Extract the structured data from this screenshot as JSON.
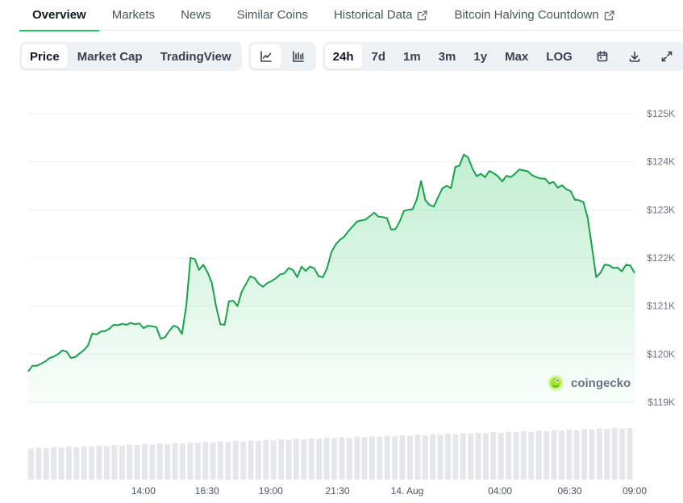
{
  "tabs": [
    {
      "label": "Overview",
      "active": true,
      "external": false
    },
    {
      "label": "Markets",
      "active": false,
      "external": false
    },
    {
      "label": "News",
      "active": false,
      "external": false
    },
    {
      "label": "Similar Coins",
      "active": false,
      "external": false
    },
    {
      "label": "Historical Data",
      "active": false,
      "external": true
    },
    {
      "label": "Bitcoin Halving Countdown",
      "active": false,
      "external": true
    }
  ],
  "toolbar": {
    "metric_tabs": [
      "Price",
      "Market Cap",
      "TradingView"
    ],
    "metric_active": "Price",
    "chart_style_icons": [
      "line-chart-icon",
      "candlestick-chart-icon"
    ],
    "chart_style_active": "line-chart-icon",
    "ranges": [
      "24h",
      "7d",
      "1m",
      "3m",
      "1y",
      "Max",
      "LOG"
    ],
    "range_active": "24h",
    "action_icons": [
      "calendar-icon",
      "download-icon",
      "expand-icon"
    ]
  },
  "watermark": "coingecko",
  "colors": {
    "accent": "#16a34a",
    "tab_underline": "#22c55e",
    "volume": "#e5e7eb"
  },
  "chart_data": {
    "type": "area",
    "title": "",
    "xlabel": "",
    "ylabel": "",
    "ylim": [
      118900,
      125200
    ],
    "yticks": [
      119000,
      120000,
      121000,
      122000,
      123000,
      124000,
      125000
    ],
    "ytick_labels": [
      "$119K",
      "$120K",
      "$121K",
      "$122K",
      "$123K",
      "$124K",
      "$125K"
    ],
    "xticks": [
      "14:00",
      "16:30",
      "19:00",
      "21:30",
      "14. Aug",
      "04:00",
      "06:30",
      "09:00"
    ],
    "xtick_positions": [
      0.19,
      0.295,
      0.4,
      0.51,
      0.625,
      0.778,
      0.893,
      1.0
    ],
    "grid": true,
    "price": [
      119640,
      119760,
      119760,
      119800,
      119850,
      119920,
      119950,
      120000,
      120080,
      120050,
      119920,
      119940,
      120010,
      120080,
      120180,
      120430,
      120410,
      120470,
      120480,
      120530,
      120610,
      120600,
      120630,
      120610,
      120650,
      120620,
      120640,
      120540,
      120590,
      120580,
      120560,
      120320,
      120350,
      120480,
      120590,
      120560,
      120420,
      120990,
      122000,
      121980,
      121750,
      121860,
      121700,
      121480,
      120990,
      120620,
      120610,
      121100,
      121110,
      121000,
      121300,
      121460,
      121620,
      121580,
      121460,
      121400,
      121480,
      121520,
      121580,
      121660,
      121680,
      121790,
      121750,
      121600,
      121820,
      121730,
      121820,
      121780,
      121620,
      121600,
      121790,
      122120,
      122280,
      122380,
      122440,
      122560,
      122660,
      122760,
      122780,
      122800,
      122870,
      122940,
      122860,
      122850,
      122830,
      122590,
      122600,
      122760,
      122980,
      123000,
      123010,
      123220,
      123600,
      123200,
      123100,
      123070,
      123270,
      123450,
      123500,
      123450,
      123890,
      123920,
      124150,
      124090,
      123860,
      123700,
      123750,
      123680,
      123810,
      123760,
      123700,
      123590,
      123710,
      123680,
      123750,
      123840,
      123820,
      123800,
      123720,
      123680,
      123650,
      123650,
      123550,
      123580,
      123460,
      123510,
      123430,
      123390,
      123210,
      123200,
      123160,
      122840,
      122240,
      121600,
      121690,
      121860,
      121850,
      121790,
      121800,
      121720,
      121860,
      121840,
      121690
    ],
    "volume": [
      0.6,
      0.62,
      0.61,
      0.63,
      0.62,
      0.64,
      0.63,
      0.65,
      0.64,
      0.66,
      0.65,
      0.67,
      0.66,
      0.68,
      0.67,
      0.69,
      0.68,
      0.7,
      0.69,
      0.71,
      0.7,
      0.72,
      0.71,
      0.73,
      0.72,
      0.74,
      0.73,
      0.75,
      0.74,
      0.76,
      0.75,
      0.77,
      0.76,
      0.78,
      0.77,
      0.79,
      0.78,
      0.8,
      0.79,
      0.81,
      0.8,
      0.82,
      0.81,
      0.83,
      0.82,
      0.84,
      0.83,
      0.85,
      0.84,
      0.86,
      0.85,
      0.87,
      0.86,
      0.88,
      0.87,
      0.89,
      0.88,
      0.9,
      0.89,
      0.91,
      0.9,
      0.92,
      0.91,
      0.93,
      0.92,
      0.94,
      0.93,
      0.95,
      0.94,
      0.96,
      0.95,
      0.97,
      0.96,
      0.98,
      0.97,
      0.99,
      0.98,
      1.0,
      0.99,
      1.0
    ]
  }
}
